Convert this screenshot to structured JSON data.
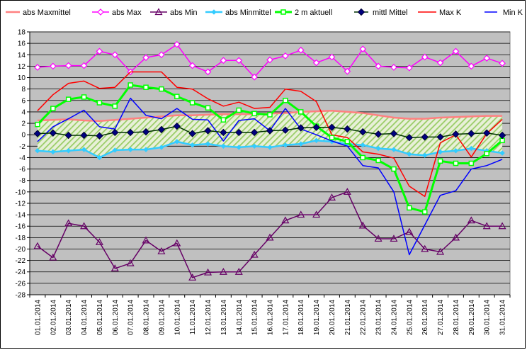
{
  "chart_data": {
    "type": "line",
    "title": "",
    "xlabel": "",
    "ylabel": "",
    "ylim": [
      -28,
      18
    ],
    "ytick_step": 2,
    "grid": "horizontal",
    "legend_position": "top",
    "colors": {
      "plot_background": "#c0c0c0",
      "band_fill": "#99cc66",
      "grid": "#000000"
    },
    "categories": [
      "01.01.2014",
      "02.01.2014",
      "03.01.2014",
      "04.01.2014",
      "05.01.2014",
      "06.01.2014",
      "07.01.2014",
      "08.01.2014",
      "09.01.2014",
      "10.01.2014",
      "11.01.2014",
      "12.01.2014",
      "13.01.2014",
      "14.01.2014",
      "15.01.2014",
      "16.01.2014",
      "17.01.2014",
      "18.01.2014",
      "19.01.2014",
      "20.01.2014",
      "21.01.2014",
      "22.01.2014",
      "23.01.2014",
      "24.01.2014",
      "25.01.2014",
      "26.01.2014",
      "27.01.2014",
      "28.01.2014",
      "29.01.2014",
      "30.01.2014",
      "31.01.2014"
    ],
    "series": [
      {
        "name": "abs Maxmittel",
        "color": "#ff8080",
        "marker": "none",
        "style": "band-top",
        "values": [
          2.5,
          2.6,
          2.7,
          2.5,
          2.4,
          2.6,
          2.8,
          3.0,
          3.2,
          3.4,
          3.4,
          3.5,
          3.6,
          3.6,
          3.6,
          3.7,
          3.8,
          4.0,
          4.1,
          4.2,
          4.0,
          3.8,
          3.4,
          3.0,
          2.8,
          2.8,
          3.0,
          3.1,
          3.2,
          3.3,
          3.3
        ]
      },
      {
        "name": "abs Max",
        "color": "#ff00ff",
        "marker": "diamond-open",
        "values": [
          11.8,
          12.0,
          12.1,
          12.1,
          14.6,
          14.0,
          11.0,
          13.5,
          14.0,
          15.8,
          12.1,
          11.0,
          13.0,
          13.0,
          10.1,
          13.1,
          13.8,
          14.8,
          12.6,
          13.6,
          11.1,
          15.0,
          12.0,
          11.8,
          11.7,
          13.6,
          12.6,
          14.6,
          12.0,
          13.4,
          12.5
        ]
      },
      {
        "name": "abs Min",
        "color": "#660066",
        "marker": "triangle-open",
        "values": [
          -19.5,
          -21.5,
          -15.5,
          -16.0,
          -18.8,
          -23.4,
          -22.5,
          -18.5,
          -20.4,
          -19.0,
          -25.0,
          -24.1,
          -24.0,
          -24.0,
          -21.0,
          -18.0,
          -15.0,
          -14.0,
          -14.0,
          -11.0,
          -10.0,
          -15.9,
          -18.2,
          -18.2,
          -17.0,
          -20.0,
          -20.5,
          -18.0,
          -15.0,
          -16.0,
          -16.0
        ]
      },
      {
        "name": "abs Minmittel",
        "color": "#33ccff",
        "marker": "diamond-filled",
        "style": "band-bottom",
        "values": [
          -2.8,
          -3.0,
          -2.8,
          -2.6,
          -4.0,
          -2.7,
          -2.6,
          -2.6,
          -2.2,
          -1.2,
          -1.8,
          -1.6,
          -2.0,
          -2.2,
          -2.0,
          -2.2,
          -1.8,
          -1.6,
          -1.0,
          -1.2,
          -1.6,
          -1.8,
          -2.4,
          -2.6,
          -3.4,
          -3.6,
          -3.0,
          -2.8,
          -2.4,
          -2.8,
          -3.2
        ]
      },
      {
        "name": "2 m aktuell",
        "color": "#00ff00",
        "marker": "square-open",
        "emphasis": true,
        "values": [
          1.8,
          4.6,
          6.2,
          6.6,
          5.6,
          5.0,
          8.7,
          8.3,
          8.0,
          6.7,
          5.6,
          4.7,
          2.6,
          4.3,
          3.7,
          3.5,
          6.0,
          4.0,
          1.5,
          -0.5,
          -1.2,
          -4.0,
          -4.5,
          -6.0,
          -12.8,
          -13.5,
          -4.6,
          -5.0,
          -5.0,
          -3.3,
          -1.0
        ]
      },
      {
        "name": "mittl Mittel",
        "color": "#003300",
        "marker": "diamond-dark",
        "values": [
          0.2,
          0.3,
          -0.1,
          -0.1,
          -0.2,
          0.4,
          0.4,
          0.5,
          0.9,
          1.5,
          0.2,
          0.7,
          0.4,
          0.4,
          0.4,
          0.7,
          0.8,
          1.2,
          1.3,
          1.3,
          1.0,
          0.5,
          0.1,
          0.2,
          -0.5,
          -0.4,
          -0.4,
          0.1,
          0.2,
          0.3,
          -0.1
        ]
      },
      {
        "name": "Max K",
        "color": "#ff0000",
        "marker": "none",
        "values": [
          4.2,
          7.0,
          9.0,
          9.4,
          8.1,
          8.3,
          11.0,
          11.0,
          11.0,
          8.3,
          8.0,
          6.3,
          5.0,
          5.7,
          4.6,
          4.8,
          8.0,
          7.6,
          5.8,
          0.0,
          -0.5,
          -3.0,
          -3.4,
          -4.1,
          -9.0,
          -10.8,
          -1.4,
          0.0,
          -3.9,
          0.2,
          2.7
        ]
      },
      {
        "name": "Min K",
        "color": "#0000ff",
        "marker": "none",
        "values": [
          -1.2,
          1.4,
          2.8,
          4.3,
          1.4,
          1.0,
          6.4,
          3.4,
          2.8,
          4.6,
          2.7,
          2.6,
          -1.1,
          2.5,
          2.8,
          0.7,
          4.6,
          1.0,
          0.0,
          -1.1,
          -2.0,
          -5.4,
          -5.8,
          -10.0,
          -21.0,
          -15.8,
          -10.6,
          -9.8,
          -6.0,
          -5.4,
          -4.3
        ]
      }
    ]
  }
}
